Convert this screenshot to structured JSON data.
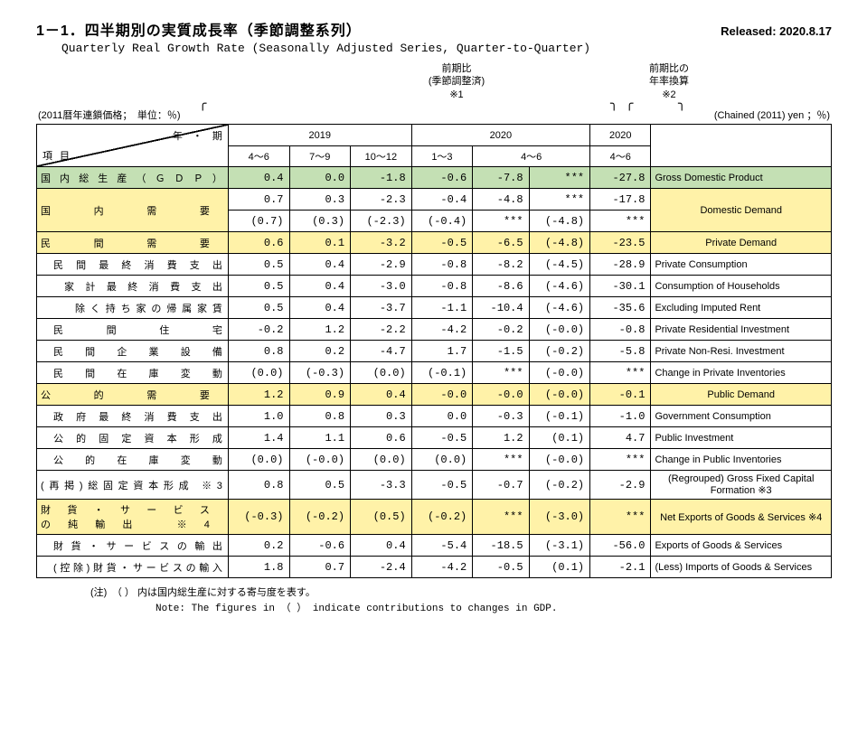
{
  "header": {
    "title_jp": "1－1．四半期別の実質成長率（季節調整系列）",
    "released": "Released: 2020.8.17",
    "title_en": "Quarterly Real Growth Rate (Seasonally Adjusted Series, Quarter-to-Quarter)",
    "anno1": "前期比\n(季節調整済)\n※1",
    "anno2": "前期比の\n年率換算\n※2",
    "pre_left": "(2011暦年連鎖価格；　単位：％)",
    "pre_right": "(Chained (2011) yen ；％)"
  },
  "cols": {
    "corner_tr": "年　・　期",
    "corner_bl": "項目",
    "y2019": "2019",
    "y2020": "2020",
    "y2020b": "2020",
    "q": [
      "4～6",
      "7～9",
      "10～12",
      "1～3",
      "4～6",
      "",
      "4～6"
    ]
  },
  "rows": [
    {
      "cls": "g",
      "jp": "国 内 総 生 産  （ Ｇ Ｄ Ｐ ）",
      "en": "Gross Domestic Product",
      "c": [
        "0.4",
        "0.0",
        "-1.8",
        "-0.6",
        "-7.8",
        "***",
        "-27.8"
      ]
    },
    {
      "cls": "y two",
      "jp": "国内需要",
      "en": "Domestic Demand",
      "c1": [
        "0.7",
        "0.3",
        "-2.3",
        "-0.4",
        "-4.8",
        "***",
        "-17.8"
      ],
      "c2": [
        "(0.7)",
        "(0.3)",
        "(-2.3)",
        "(-0.4)",
        "***",
        "(-4.8)",
        "***"
      ]
    },
    {
      "cls": "y",
      "jp": "民間需要",
      "en": "Private Demand",
      "c": [
        "0.6",
        "0.1",
        "-3.2",
        "-0.5",
        "-6.5",
        "(-4.8)",
        "-23.5"
      ],
      "enc": 1
    },
    {
      "ind": 1,
      "jp": "民 間 最 終 消 費 支 出",
      "en": "Private Consumption",
      "c": [
        "0.5",
        "0.4",
        "-2.9",
        "-0.8",
        "-8.2",
        "(-4.5)",
        "-28.9"
      ]
    },
    {
      "ind": 2,
      "jp": "家 計 最 終 消 費 支 出",
      "en": "Consumption of Households",
      "c": [
        "0.5",
        "0.4",
        "-3.0",
        "-0.8",
        "-8.6",
        "(-4.6)",
        "-30.1"
      ]
    },
    {
      "ind": 3,
      "jp": "除く持ち家の帰属家賃",
      "en": "Excluding Imputed Rent",
      "c": [
        "0.5",
        "0.4",
        "-3.7",
        "-1.1",
        "-10.4",
        "(-4.6)",
        "-35.6"
      ]
    },
    {
      "ind": 1,
      "jp": "民間住宅",
      "en": "Private Residential Investment",
      "c": [
        "-0.2",
        "1.2",
        "-2.2",
        "-4.2",
        "-0.2",
        "(-0.0)",
        "-0.8"
      ]
    },
    {
      "ind": 1,
      "jp": "民 間 企 業 設 備",
      "en": "Private Non-Resi. Investment",
      "c": [
        "0.8",
        "0.2",
        "-4.7",
        "1.7",
        "-1.5",
        "(-0.2)",
        "-5.8"
      ]
    },
    {
      "ind": 1,
      "jp": "民 間 在 庫 変 動",
      "en": "Change in Private Inventories",
      "c": [
        "(0.0)",
        "(-0.3)",
        "(0.0)",
        "(-0.1)",
        "***",
        "(-0.0)",
        "***"
      ]
    },
    {
      "cls": "y",
      "jp": "公的需要",
      "en": "Public Demand",
      "c": [
        "1.2",
        "0.9",
        "0.4",
        "-0.0",
        "-0.0",
        "(-0.0)",
        "-0.1"
      ],
      "enc": 1
    },
    {
      "ind": 1,
      "jp": "政 府 最 終 消 費 支 出",
      "en": "Government Consumption",
      "c": [
        "1.0",
        "0.8",
        "0.3",
        "0.0",
        "-0.3",
        "(-0.1)",
        "-1.0"
      ]
    },
    {
      "ind": 1,
      "jp": "公 的 固 定 資 本 形 成",
      "en": "Public Investment",
      "c": [
        "1.4",
        "1.1",
        "0.6",
        "-0.5",
        "1.2",
        "(0.1)",
        "4.7"
      ]
    },
    {
      "ind": 1,
      "jp": "公 的 在 庫 変 動",
      "en": "Change in Public Inventories",
      "c": [
        "(0.0)",
        "(-0.0)",
        "(0.0)",
        "(0.0)",
        "***",
        "(-0.0)",
        "***"
      ]
    },
    {
      "jp": "(再掲)総固定資本形成 ※3",
      "en": "(Regrouped) Gross Fixed Capital Formation ※3",
      "c": [
        "0.8",
        "0.5",
        "-3.3",
        "-0.5",
        "-0.7",
        "(-0.2)",
        "-2.9"
      ],
      "enc": 1
    },
    {
      "cls": "y",
      "jp": "財貨・サービスの純輸出　※4",
      "en": "Net Exports of Goods & Services ※4",
      "c": [
        "(-0.3)",
        "(-0.2)",
        "(0.5)",
        "(-0.2)",
        "***",
        "(-3.0)",
        "***"
      ],
      "enc": 1
    },
    {
      "ind": 1,
      "jp": "財 貨 ・ サ ー ビ ス の 輸 出",
      "en": "Exports of Goods & Services",
      "c": [
        "0.2",
        "-0.6",
        "0.4",
        "-5.4",
        "-18.5",
        "(-3.1)",
        "-56.0"
      ]
    },
    {
      "ind": 1,
      "jp": "(控除)財貨・サービスの輸入",
      "en": "(Less) Imports of Goods & Services",
      "c": [
        "1.8",
        "0.7",
        "-2.4",
        "-4.2",
        "-0.5",
        "(0.1)",
        "-2.1"
      ]
    }
  ],
  "note": {
    "jp": "(注)　（ ） 内は国内総生産に対する寄与度を表す。",
    "en": "Note: The figures in （ ） indicate contributions to changes in GDP."
  }
}
